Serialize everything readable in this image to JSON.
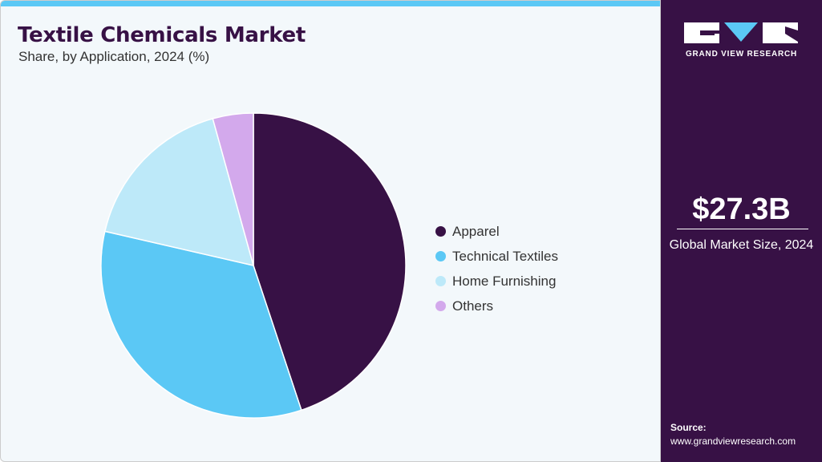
{
  "title": "Textile Chemicals Market",
  "subtitle": "Share, by Application, 2024 (%)",
  "brand": {
    "name": "GRAND VIEW RESEARCH"
  },
  "highlight": {
    "value": "$27.3B",
    "label": "Global Market Size, 2024"
  },
  "source": {
    "label": "Source:",
    "url": "www.grandviewresearch.com"
  },
  "colors": {
    "accent": "#5bc8f5",
    "panel": "#371145",
    "background": "#f3f8fb"
  },
  "chart_data": {
    "type": "pie",
    "title": "Textile Chemicals Market",
    "subtitle": "Share, by Application, 2024 (%)",
    "legend_position": "right",
    "categories": [
      "Apparel",
      "Technical Textiles",
      "Home Furnishing",
      "Others"
    ],
    "values": [
      44.9,
      33.7,
      17.1,
      4.3
    ],
    "colors": [
      "#371145",
      "#5bc8f5",
      "#bde9f9",
      "#d3a9ec"
    ]
  }
}
